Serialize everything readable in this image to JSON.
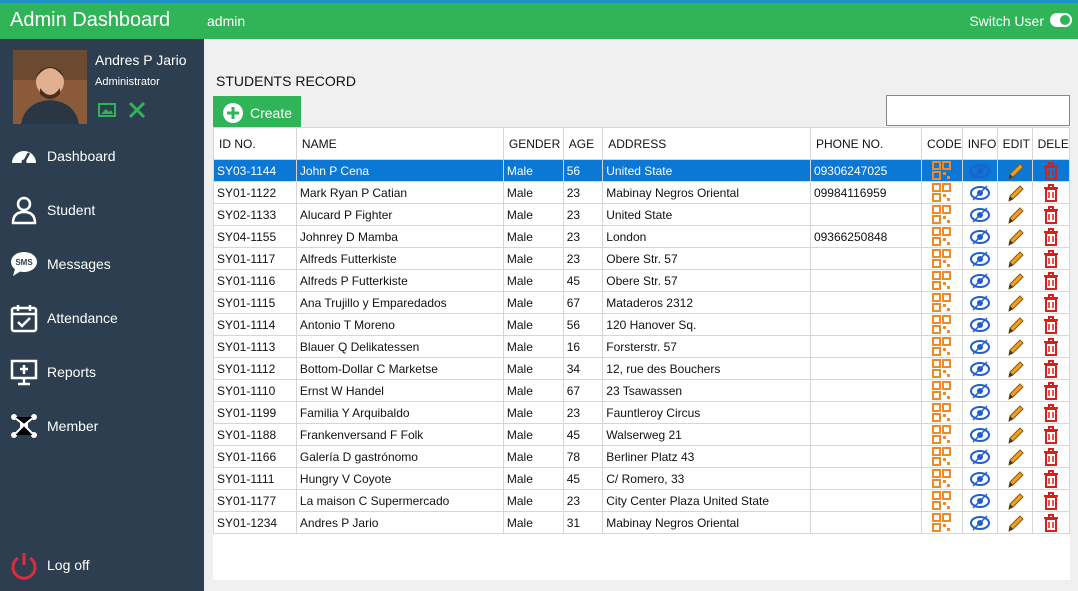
{
  "header": {
    "title": "Admin Dashboard",
    "user": "admin",
    "switch_user": "Switch User"
  },
  "profile": {
    "name": "Andres P Jario",
    "role": "Administrator"
  },
  "nav": [
    "Dashboard",
    "Student",
    "Messages",
    "Attendance",
    "Reports",
    "Member"
  ],
  "logoff": "Log off",
  "section_title": "STUDENTS RECORD",
  "create_button": "Create",
  "table": {
    "columns": [
      "ID NO.",
      "NAME",
      "GENDER",
      "AGE",
      "ADDRESS",
      "PHONE NO.",
      "CODE",
      "INFO",
      "EDIT",
      "DELE"
    ],
    "rows": [
      [
        "SY03-1144",
        "John P Cena",
        "Male",
        56,
        "United State",
        "09306247025"
      ],
      [
        "SY01-1122",
        "Mark Ryan P Catian",
        "Male",
        23,
        "Mabinay Negros Oriental",
        "09984116959"
      ],
      [
        "SY02-1133",
        "Alucard P Fighter",
        "Male",
        23,
        "United State",
        null
      ],
      [
        "SY04-1155",
        "Johnrey D Mamba",
        "Male",
        23,
        "London",
        "09366250848"
      ],
      [
        "SY01-1117",
        "Alfreds  Futterkiste",
        "Male",
        23,
        "Obere Str. 57",
        null
      ],
      [
        "SY01-1116",
        "Alfreds P Futterkiste",
        "Male",
        45,
        "Obere Str. 57",
        null
      ],
      [
        "SY01-1115",
        "Ana Trujillo y Emparedados",
        "Male",
        67,
        "Mataderos 2312",
        null
      ],
      [
        "SY01-1114",
        "Antonio T Moreno",
        "Male",
        56,
        "120 Hanover Sq.",
        null
      ],
      [
        "SY01-1113",
        "Blauer Q Delikatessen",
        "Male",
        16,
        "Forsterstr. 57",
        null
      ],
      [
        "SY01-1112",
        "Bottom-Dollar C Marketse",
        "Male",
        34,
        "12, rue des Bouchers",
        null
      ],
      [
        "SY01-1110",
        "Ernst W Handel",
        "Male",
        67,
        "23 Tsawassen",
        null
      ],
      [
        "SY01-1199",
        "Familia Y Arquibaldo",
        "Male",
        23,
        "Fauntleroy Circus",
        null
      ],
      [
        "SY01-1188",
        "Frankenversand F Folk",
        "Male",
        45,
        "Walserweg 21",
        null
      ],
      [
        "SY01-1166",
        "Galería D gastrónomo",
        "Male",
        78,
        "Berliner Platz 43",
        null
      ],
      [
        "SY01-1111",
        "Hungry V Coyote",
        "Male",
        45,
        "C/ Romero, 33",
        null
      ],
      [
        "SY01-1177",
        "La maison C Supermercado",
        "Male",
        23,
        "City Center Plaza United State",
        null
      ],
      [
        "SY01-1234",
        "Andres P Jario",
        "Male",
        31,
        "Mabinay Negros Oriental",
        null
      ]
    ]
  }
}
